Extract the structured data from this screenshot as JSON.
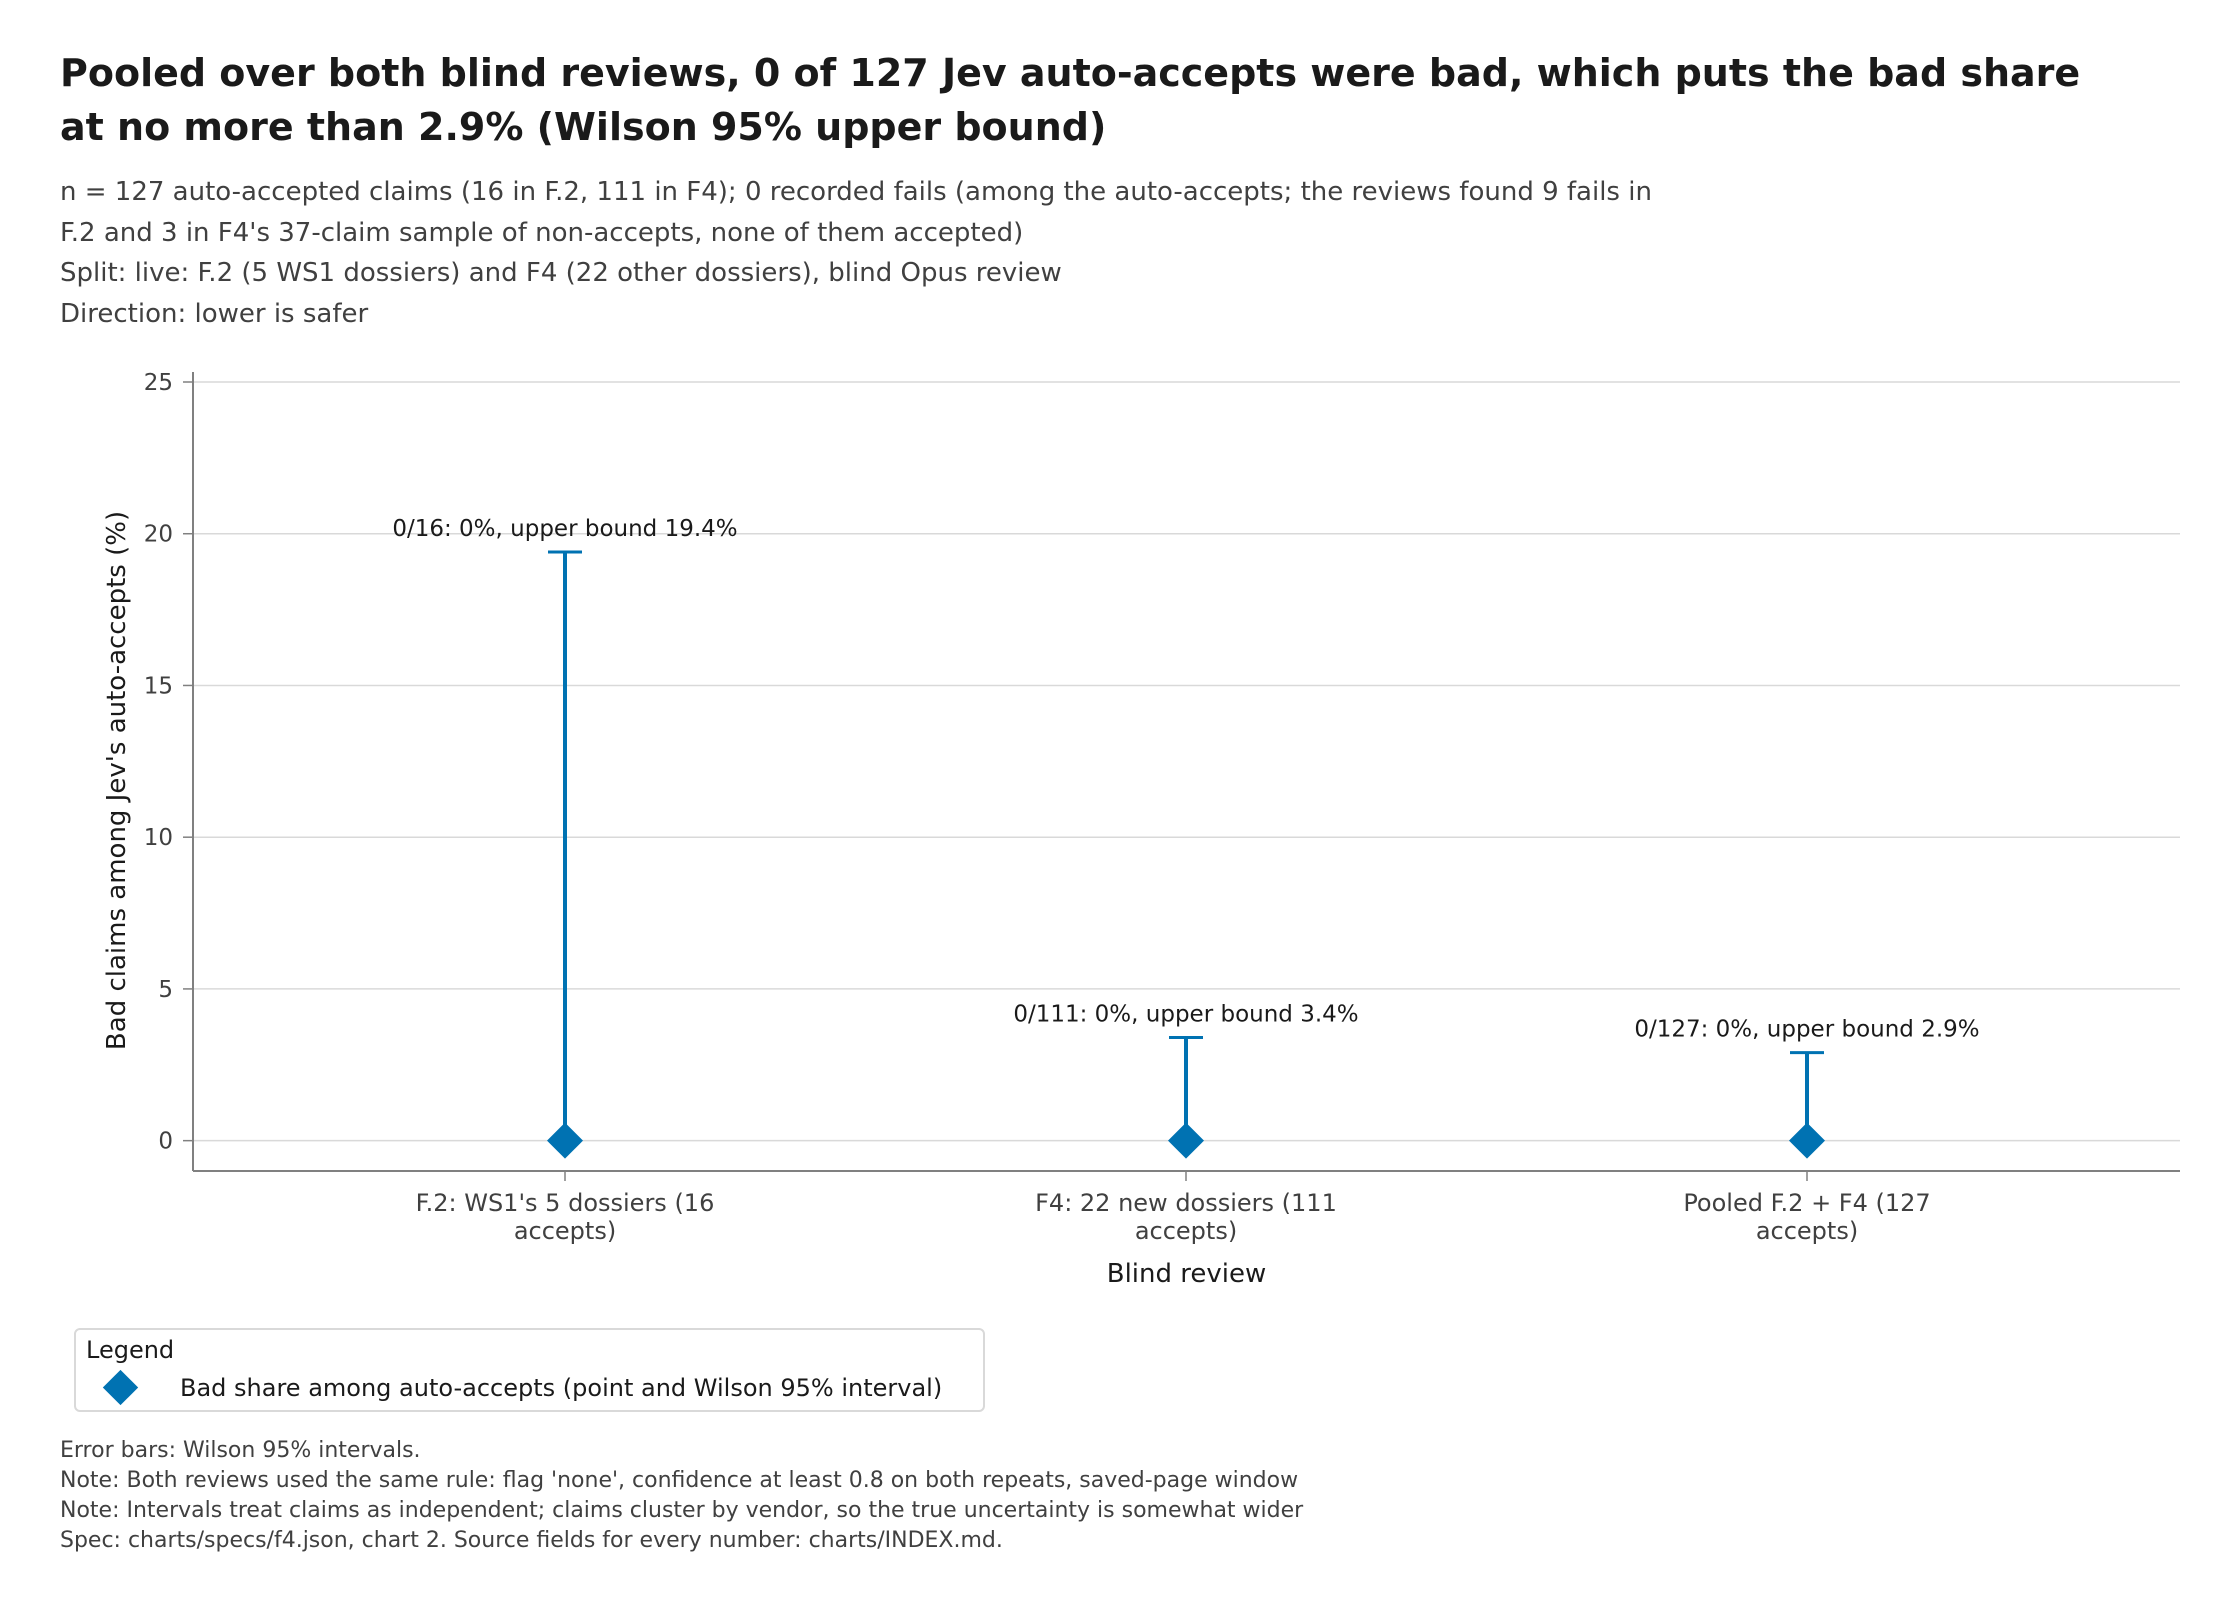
{
  "title_lines": [
    "Pooled over both blind reviews, 0 of 127 Jev auto-accepts were bad, which puts the bad share",
    "at no more than 2.9% (Wilson 95% upper bound)"
  ],
  "subtitle_lines": [
    "n = 127 auto-accepted claims (16 in F.2, 111 in F4); 0 recorded fails (among the auto-accepts; the reviews found 9 fails in",
    "F.2 and 3 in F4's 37-claim sample of non-accepts, none of them accepted)",
    "Split: live: F.2 (5 WS1 dossiers) and F4 (22 other dossiers), blind Opus review",
    "Direction: lower is safer"
  ],
  "legend": {
    "title": "Legend",
    "label": "Bad share among auto-accepts (point and Wilson 95% interval)"
  },
  "notes": [
    "Error bars: Wilson 95% intervals.",
    "Note: Both reviews used the same rule: flag 'none', confidence at least 0.8 on both repeats, saved-page window",
    "Note: Intervals treat claims as independent; claims cluster by vendor, so the true uncertainty is somewhat wider",
    "Spec: charts/specs/f4.json, chart 2. Source fields for every number: charts/INDEX.md."
  ],
  "colors": {
    "series": "#0072b2",
    "grid": "#d9d9d9",
    "axis": "#808080"
  },
  "marker_icon": "diamond-marker",
  "chart_data": {
    "type": "scatter",
    "xlabel": "Blind review",
    "ylabel": "Bad claims among Jev's auto-accepts (%)",
    "ylim": [
      -1,
      25
    ],
    "yticks": [
      0,
      5,
      10,
      15,
      20,
      25
    ],
    "grid": "y",
    "legend_placement": "bottom-left",
    "categories": [
      [
        "F.2: WS1's 5 dossiers (16",
        "accepts)"
      ],
      [
        "F4: 22 new dossiers (111",
        "accepts)"
      ],
      [
        "Pooled F.2 + F4 (127",
        "accepts)"
      ]
    ],
    "series": [
      {
        "values": [
          0,
          0,
          0
        ],
        "lower": [
          0,
          0,
          0
        ],
        "upper": [
          19.4,
          3.4,
          2.9
        ],
        "annotations": [
          "0/16: 0%, upper bound 19.4%",
          "0/111: 0%, upper bound 3.4%",
          "0/127: 0%, upper bound 2.9%"
        ]
      }
    ]
  }
}
